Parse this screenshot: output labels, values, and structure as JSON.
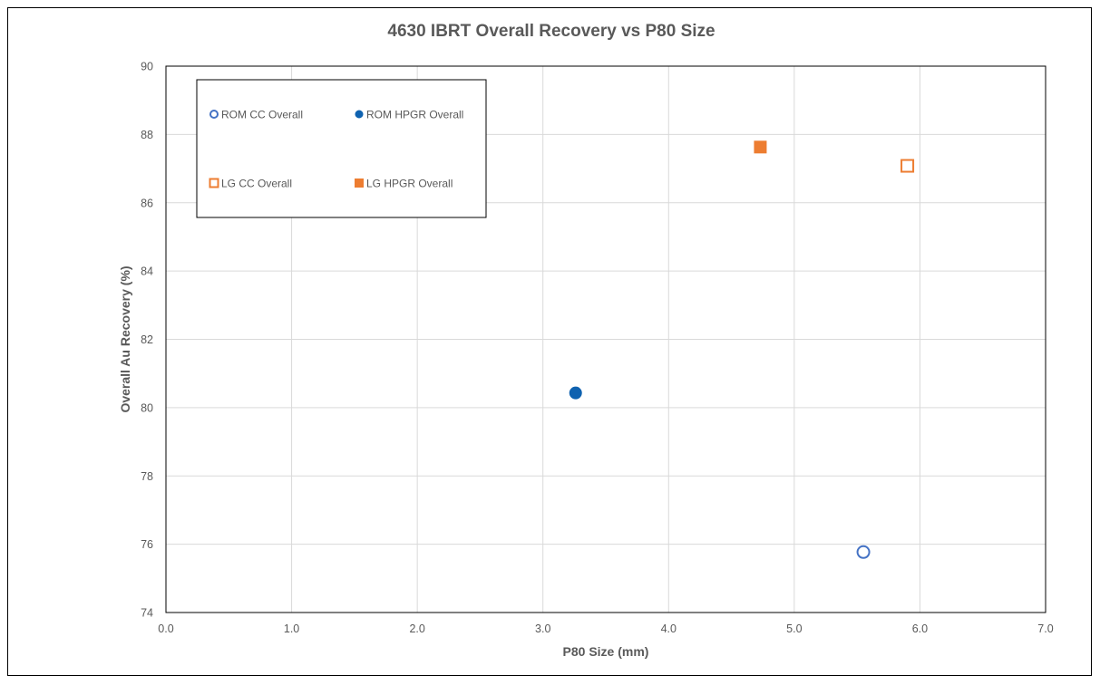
{
  "chart_data": {
    "type": "scatter",
    "title": "4630 IBRT Overall Recovery vs P80 Size",
    "xlabel": "P80 Size (mm)",
    "ylabel": "Overall Au Recovery (%)",
    "xlim": [
      0,
      7
    ],
    "ylim": [
      74,
      90
    ],
    "xticks": [
      "0.0",
      "1.0",
      "2.0",
      "3.0",
      "4.0",
      "5.0",
      "6.0",
      "7.0"
    ],
    "yticks": [
      "74",
      "76",
      "78",
      "80",
      "82",
      "84",
      "86",
      "88",
      "90"
    ],
    "grid": true,
    "legend_position": "top-left",
    "series": [
      {
        "name": "ROM CC Overall",
        "marker": "circle-open",
        "color": "#4472C4",
        "points": [
          {
            "x": 5.55,
            "y": 75.77
          }
        ]
      },
      {
        "name": "ROM HPGR Overall",
        "marker": "circle-filled",
        "color": "#0F62B0",
        "points": [
          {
            "x": 3.26,
            "y": 80.43
          }
        ]
      },
      {
        "name": "LG CC Overall",
        "marker": "square-open",
        "color": "#ED7D31",
        "points": [
          {
            "x": 5.9,
            "y": 87.08
          }
        ]
      },
      {
        "name": "LG HPGR Overall",
        "marker": "square-filled",
        "color": "#ED7D31",
        "points": [
          {
            "x": 4.73,
            "y": 87.63
          }
        ]
      }
    ]
  }
}
